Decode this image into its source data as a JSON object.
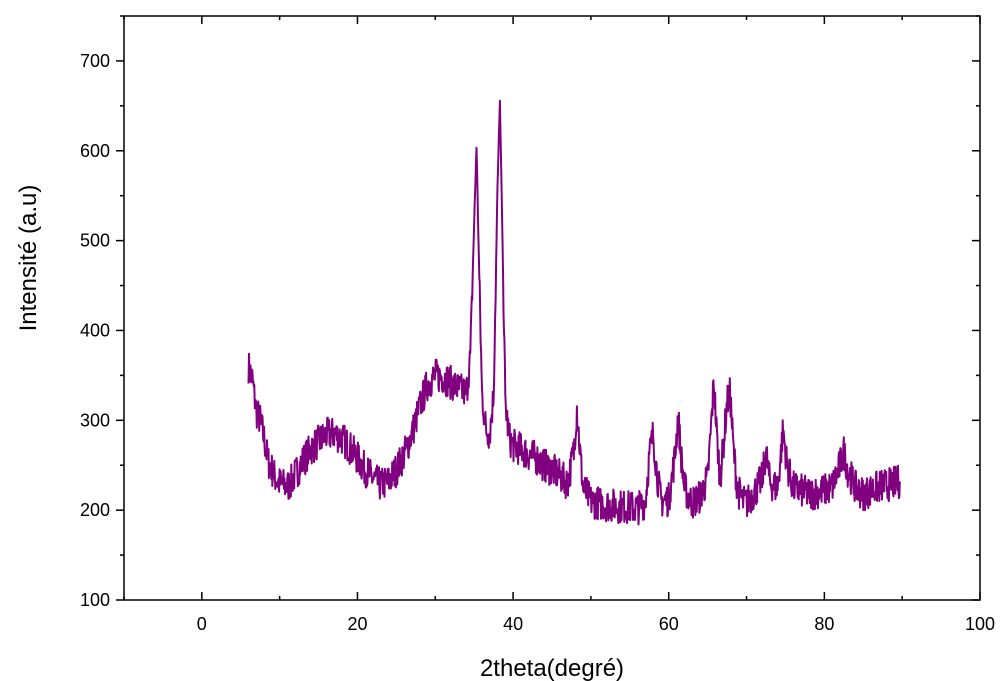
{
  "chart_data": {
    "type": "line",
    "xlabel": "2theta(degré)",
    "ylabel": "Intensité (a.u)",
    "xlim": [
      -10,
      100
    ],
    "ylim": [
      100,
      750
    ],
    "xticks": [
      0,
      20,
      40,
      60,
      80,
      100
    ],
    "yticks": [
      100,
      200,
      300,
      400,
      500,
      600,
      700
    ],
    "grid": false,
    "series": [
      {
        "color": "#800080",
        "x": [
          6.0,
          6.5,
          7.0,
          7.5,
          8.0,
          8.5,
          9.0,
          9.5,
          10.0,
          10.5,
          11.0,
          11.5,
          12.0,
          13.0,
          14.0,
          15.0,
          16.0,
          17.0,
          18.0,
          19.0,
          20.0,
          21.0,
          22.0,
          23.0,
          24.0,
          25.0,
          26.0,
          27.0,
          28.0,
          29.0,
          30.0,
          31.0,
          32.0,
          33.0,
          34.0,
          34.5,
          35.0,
          35.3,
          35.6,
          36.0,
          36.5,
          37.0,
          37.5,
          38.0,
          38.3,
          38.6,
          39.0,
          39.5,
          40.0,
          41.0,
          42.0,
          43.0,
          44.0,
          45.0,
          46.0,
          47.0,
          47.8,
          48.2,
          48.6,
          49.0,
          50.0,
          51.0,
          52.0,
          53.0,
          54.0,
          55.0,
          56.0,
          57.0,
          57.5,
          58.0,
          58.5,
          59.0,
          60.0,
          60.8,
          61.2,
          61.6,
          62.0,
          63.0,
          64.0,
          65.0,
          65.5,
          65.8,
          66.2,
          66.6,
          67.0,
          67.5,
          67.9,
          68.3,
          68.8,
          69.5,
          70.0,
          71.0,
          72.0,
          72.5,
          73.0,
          74.0,
          74.7,
          75.2,
          76.0,
          77.0,
          78.0,
          79.0,
          80.0,
          81.0,
          82.0,
          82.5,
          83.0,
          84.0,
          85.0,
          86.0,
          87.0,
          88.0,
          89.0,
          89.7
        ],
        "y": [
          360,
          345,
          310,
          300,
          280,
          255,
          245,
          235,
          230,
          228,
          226,
          232,
          240,
          255,
          268,
          276,
          284,
          285,
          280,
          270,
          258,
          245,
          235,
          228,
          232,
          245,
          262,
          285,
          315,
          340,
          350,
          348,
          342,
          335,
          330,
          370,
          520,
          605,
          480,
          330,
          290,
          285,
          330,
          560,
          655,
          520,
          320,
          280,
          272,
          268,
          262,
          258,
          250,
          245,
          238,
          230,
          265,
          315,
          265,
          225,
          210,
          208,
          206,
          205,
          204,
          203,
          202,
          210,
          260,
          285,
          240,
          210,
          212,
          260,
          305,
          260,
          225,
          208,
          215,
          235,
          300,
          345,
          280,
          235,
          270,
          320,
          330,
          270,
          225,
          210,
          208,
          220,
          235,
          265,
          230,
          225,
          290,
          250,
          225,
          222,
          218,
          220,
          222,
          226,
          250,
          265,
          245,
          225,
          218,
          222,
          226,
          228,
          230,
          232
        ]
      }
    ]
  }
}
